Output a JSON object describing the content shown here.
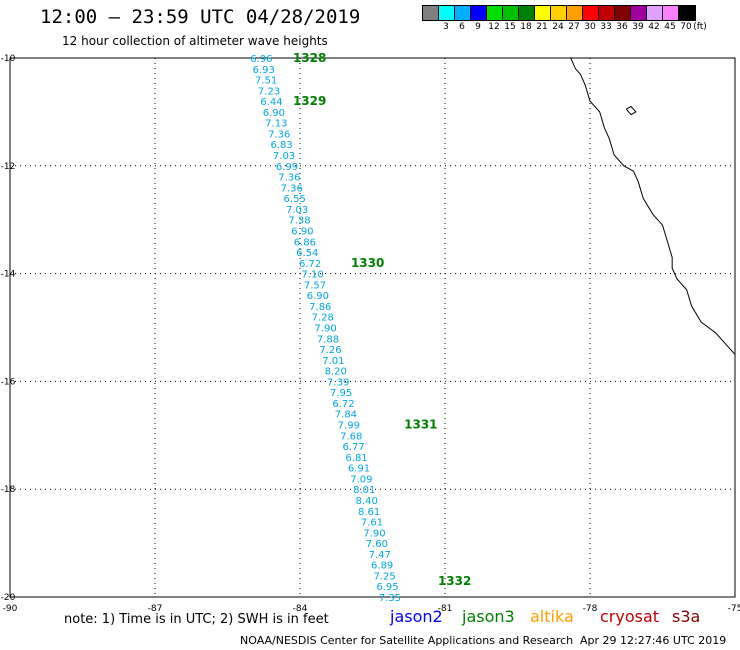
{
  "header": {
    "title": "12:00 – 23:59 UTC 04/28/2019",
    "subtitle": "12 hour collection of altimeter wave heights"
  },
  "legend": {
    "colors": [
      "#808080",
      "#00ffff",
      "#00b0ff",
      "#0000ff",
      "#00e000",
      "#00c000",
      "#008000",
      "#ffff00",
      "#ffd000",
      "#ffa000",
      "#ff0000",
      "#c00000",
      "#800000",
      "#a000a0",
      "#e0a0ff",
      "#ff80ff",
      "#000000"
    ],
    "labels": [
      "3",
      "6",
      "9",
      "12",
      "15",
      "18",
      "21",
      "24",
      "27",
      "30",
      "33",
      "36",
      "39",
      "42",
      "45",
      "70"
    ],
    "unit": "(ft)"
  },
  "axes": {
    "lon_ticks": [
      "-90",
      "-87",
      "-84",
      "-81",
      "-78",
      "-75"
    ],
    "lat_ticks": [
      "-10",
      "-12",
      "-14",
      "-16",
      "-18",
      "-20"
    ]
  },
  "map_data": {
    "lon_range": [
      -90,
      -75
    ],
    "lat_range": [
      -20,
      -10
    ],
    "track_color": "#00a8e0",
    "pass_color": "#008000",
    "track": [
      {
        "lon": -84.8,
        "lat": -10.0,
        "swh": "6.96"
      },
      {
        "lon": -84.75,
        "lat": -10.2,
        "swh": "6.93"
      },
      {
        "lon": -84.7,
        "lat": -10.4,
        "swh": "7.51"
      },
      {
        "lon": -84.64,
        "lat": -10.6,
        "swh": "7.23"
      },
      {
        "lon": -84.59,
        "lat": -10.8,
        "swh": "6.44"
      },
      {
        "lon": -84.54,
        "lat": -11.0,
        "swh": "6.90"
      },
      {
        "lon": -84.49,
        "lat": -11.2,
        "swh": "7.13"
      },
      {
        "lon": -84.43,
        "lat": -11.4,
        "swh": "7.36"
      },
      {
        "lon": -84.38,
        "lat": -11.6,
        "swh": "6.83"
      },
      {
        "lon": -84.33,
        "lat": -11.8,
        "swh": "7.03"
      },
      {
        "lon": -84.27,
        "lat": -12.0,
        "swh": "6.99"
      },
      {
        "lon": -84.22,
        "lat": -12.2,
        "swh": "7.36"
      },
      {
        "lon": -84.17,
        "lat": -12.4,
        "swh": "7.36"
      },
      {
        "lon": -84.11,
        "lat": -12.6,
        "swh": "6.55"
      },
      {
        "lon": -84.06,
        "lat": -12.8,
        "swh": "7.03"
      },
      {
        "lon": -84.01,
        "lat": -13.0,
        "swh": "7.38"
      },
      {
        "lon": -83.95,
        "lat": -13.2,
        "swh": "6.90"
      },
      {
        "lon": -83.9,
        "lat": -13.4,
        "swh": "6.86"
      },
      {
        "lon": -83.85,
        "lat": -13.6,
        "swh": "6.54"
      },
      {
        "lon": -83.79,
        "lat": -13.8,
        "swh": "6.72"
      },
      {
        "lon": -83.74,
        "lat": -14.0,
        "swh": "7.10"
      },
      {
        "lon": -83.69,
        "lat": -14.2,
        "swh": "7.57"
      },
      {
        "lon": -83.63,
        "lat": -14.4,
        "swh": "6.90"
      },
      {
        "lon": -83.58,
        "lat": -14.6,
        "swh": "7.86"
      },
      {
        "lon": -83.53,
        "lat": -14.8,
        "swh": "7.28"
      },
      {
        "lon": -83.47,
        "lat": -15.0,
        "swh": "7.90"
      },
      {
        "lon": -83.42,
        "lat": -15.2,
        "swh": "7.88"
      },
      {
        "lon": -83.37,
        "lat": -15.4,
        "swh": "7.26"
      },
      {
        "lon": -83.31,
        "lat": -15.6,
        "swh": "7.01"
      },
      {
        "lon": -83.26,
        "lat": -15.8,
        "swh": "8.20"
      },
      {
        "lon": -83.21,
        "lat": -16.0,
        "swh": "7.39"
      },
      {
        "lon": -83.15,
        "lat": -16.2,
        "swh": "7.95"
      },
      {
        "lon": -83.1,
        "lat": -16.4,
        "swh": "6.72"
      },
      {
        "lon": -83.05,
        "lat": -16.6,
        "swh": "7.84"
      },
      {
        "lon": -82.99,
        "lat": -16.8,
        "swh": "7.99"
      },
      {
        "lon": -82.94,
        "lat": -17.0,
        "swh": "7.68"
      },
      {
        "lon": -82.89,
        "lat": -17.2,
        "swh": "6.77"
      },
      {
        "lon": -82.83,
        "lat": -17.4,
        "swh": "6.81"
      },
      {
        "lon": -82.78,
        "lat": -17.6,
        "swh": "6.91"
      },
      {
        "lon": -82.73,
        "lat": -17.8,
        "swh": "7.09"
      },
      {
        "lon": -82.67,
        "lat": -18.0,
        "swh": "8.01"
      },
      {
        "lon": -82.62,
        "lat": -18.2,
        "swh": "8.40"
      },
      {
        "lon": -82.57,
        "lat": -18.4,
        "swh": "8.61"
      },
      {
        "lon": -82.51,
        "lat": -18.6,
        "swh": "7.61"
      },
      {
        "lon": -82.46,
        "lat": -18.8,
        "swh": "7.90"
      },
      {
        "lon": -82.41,
        "lat": -19.0,
        "swh": "7.60"
      },
      {
        "lon": -82.35,
        "lat": -19.2,
        "swh": "7.47"
      },
      {
        "lon": -82.3,
        "lat": -19.4,
        "swh": "6.89"
      },
      {
        "lon": -82.25,
        "lat": -19.6,
        "swh": "7.25"
      },
      {
        "lon": -82.19,
        "lat": -19.8,
        "swh": "6.95"
      },
      {
        "lon": -82.14,
        "lat": -20.0,
        "swh": "7.35"
      }
    ],
    "passes": [
      {
        "lon": -83.8,
        "lat": -10.0,
        "label": "1328"
      },
      {
        "lon": -83.8,
        "lat": -10.8,
        "label": "1329"
      },
      {
        "lon": -82.6,
        "lat": -13.8,
        "label": "1330"
      },
      {
        "lon": -81.5,
        "lat": -16.8,
        "label": "1331"
      },
      {
        "lon": -80.8,
        "lat": -19.7,
        "label": "1332"
      }
    ],
    "coastline": [
      [
        -78.4,
        -10.0
      ],
      [
        -78.3,
        -10.2
      ],
      [
        -78.2,
        -10.3
      ],
      [
        -78.1,
        -10.5
      ],
      [
        -78.0,
        -10.8
      ],
      [
        -77.8,
        -11.0
      ],
      [
        -77.7,
        -11.3
      ],
      [
        -77.6,
        -11.5
      ],
      [
        -77.5,
        -11.8
      ],
      [
        -77.3,
        -12.0
      ],
      [
        -77.1,
        -12.1
      ],
      [
        -77.0,
        -12.3
      ],
      [
        -76.9,
        -12.6
      ],
      [
        -76.7,
        -12.9
      ],
      [
        -76.5,
        -13.1
      ],
      [
        -76.4,
        -13.4
      ],
      [
        -76.3,
        -13.7
      ],
      [
        -76.3,
        -13.9
      ],
      [
        -76.2,
        -14.1
      ],
      [
        -76.0,
        -14.3
      ],
      [
        -75.9,
        -14.6
      ],
      [
        -75.7,
        -14.9
      ],
      [
        -75.4,
        -15.1
      ],
      [
        -75.2,
        -15.3
      ],
      [
        -75.0,
        -15.5
      ]
    ],
    "island": [
      [
        -77.25,
        -10.95
      ],
      [
        -77.15,
        -10.9
      ],
      [
        -77.05,
        -11.0
      ],
      [
        -77.15,
        -11.05
      ],
      [
        -77.25,
        -10.95
      ]
    ]
  },
  "footer": {
    "note": "note: 1) Time is in UTC; 2) SWH is in feet",
    "satellites": [
      {
        "name": "jason2",
        "color": "#0000ff"
      },
      {
        "name": "jason3",
        "color": "#008000"
      },
      {
        "name": "altika",
        "color": "#ffa000"
      },
      {
        "name": "cryosat",
        "color": "#c00000"
      },
      {
        "name": "s3a",
        "color": "#800000"
      }
    ],
    "credit": "NOAA/NESDIS Center for Satellite Applications and Research",
    "timestamp": "Apr 29 12:27:46 UTC 2019"
  }
}
